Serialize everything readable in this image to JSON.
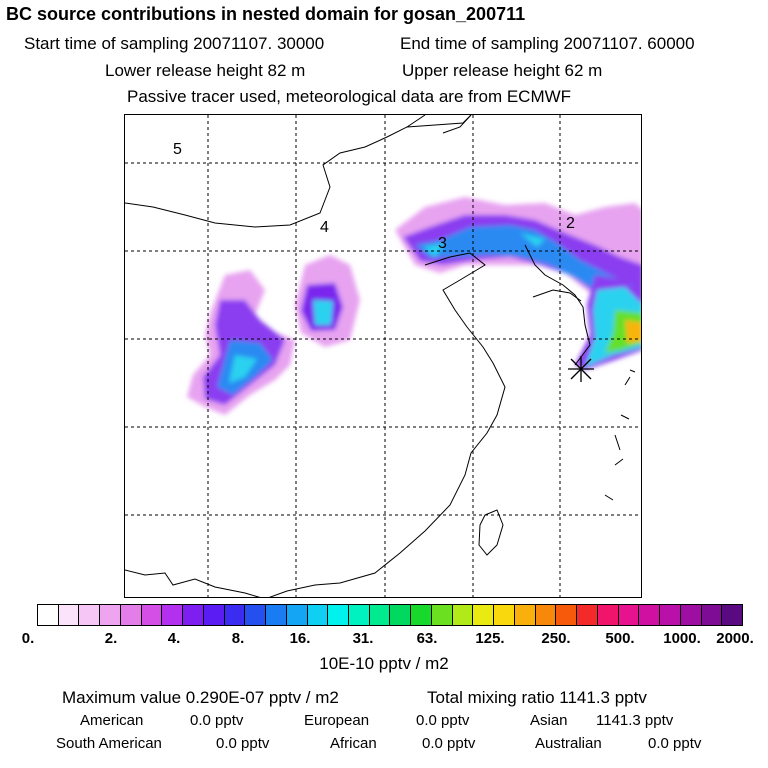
{
  "header": {
    "title": "BC  source contributions in nested domain for gosan_200711",
    "start_label": "Start time of sampling 20071107. 30000",
    "end_label": "End time of sampling 20071107. 60000",
    "lower_label": "Lower release height   82 m",
    "upper_label": "Upper release height   62 m",
    "note": "Passive tracer used, meteorological data are from ECMWF"
  },
  "map": {
    "region_labels": [
      "5",
      "4",
      "3",
      "2"
    ]
  },
  "colorbar": {
    "ticks": [
      "0.",
      "2.",
      "4.",
      "8.",
      "16.",
      "31.",
      "63.",
      "125.",
      "250.",
      "500.",
      "1000.",
      "2000."
    ],
    "colors": [
      "#ffffff",
      "#fbe4fb",
      "#f6c6f6",
      "#eea4ef",
      "#e37de8",
      "#d44fe6",
      "#b230ee",
      "#7f1ef0",
      "#5a1cf2",
      "#3a2cf0",
      "#2550f0",
      "#1a7cf2",
      "#14a6f4",
      "#0fcff2",
      "#00f2ee",
      "#00f2c0",
      "#00ea90",
      "#00d860",
      "#19d82c",
      "#6ae020",
      "#b2ea19",
      "#e8ea12",
      "#fad80e",
      "#f9b00c",
      "#f8880a",
      "#f65a0a",
      "#f42a2a",
      "#f0146a",
      "#e6128e",
      "#d010a0",
      "#b810a8",
      "#9e0ea2",
      "#7e0c94",
      "#5a0a80"
    ],
    "units": "10E-10 pptv / m2"
  },
  "footer": {
    "max_value": "Maximum value  0.290E-07 pptv / m2",
    "total_mixing": "Total mixing ratio     1141.3 pptv",
    "american": "American",
    "american_val": "0.0 pptv",
    "european": "European",
    "european_val": "0.0 pptv",
    "asian": "Asian",
    "asian_val": "1141.3 pptv",
    "south_american": "South American",
    "south_american_val": "0.0 pptv",
    "african": "African",
    "african_val": "0.0 pptv",
    "australian": "Australian",
    "australian_val": "0.0 pptv"
  }
}
